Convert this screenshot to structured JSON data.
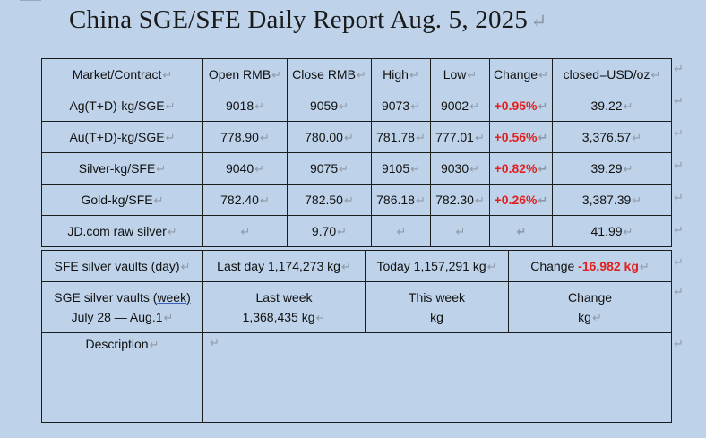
{
  "title": "China SGE/SFE Daily Report Aug. 5, 2025",
  "pilcrow": "↵",
  "price_table": {
    "headers": [
      "Market/Contract",
      "Open RMB",
      "Close RMB",
      "High",
      "Low",
      "Change",
      "closed=USD/oz"
    ],
    "rows": [
      [
        "Ag(T+D)-kg/SGE",
        "9018",
        "9059",
        "9073",
        "9002",
        "+0.95%",
        "39.22"
      ],
      [
        "Au(T+D)-kg/SGE",
        "778.90",
        "780.00",
        "781.78",
        "777.01",
        "+0.56%",
        "3,376.57"
      ],
      [
        "Silver-kg/SFE",
        "9040",
        "9075",
        "9105",
        "9030",
        "+0.82%",
        "39.29"
      ],
      [
        "Gold-kg/SFE",
        "782.40",
        "782.50",
        "786.18",
        "782.30",
        "+0.26%",
        "3,387.39"
      ],
      [
        "JD.com raw silver",
        "",
        "9.70",
        "",
        "",
        "",
        "41.99"
      ]
    ]
  },
  "sfe_vaults": {
    "label": "SFE silver vaults (day)",
    "last_day": "Last day 1,174,273 kg",
    "today": "Today 1,157,291 kg",
    "change_label": "Change ",
    "change_value": "-16,982 kg"
  },
  "sge_vaults": {
    "label_a": "SGE silver vaults (",
    "label_week": "week)",
    "period": "July 28 — Aug.1",
    "last_week_label": "Last week",
    "last_week_value": "1,368,435 kg",
    "this_week_label": "This week",
    "this_week_value": "kg",
    "change_label": "Change",
    "change_value": "kg"
  },
  "description": {
    "label": "Description",
    "text": ""
  },
  "colors": {
    "background": "#bed3ea",
    "positive": "#e0201f",
    "border": "#1c1c1c"
  }
}
